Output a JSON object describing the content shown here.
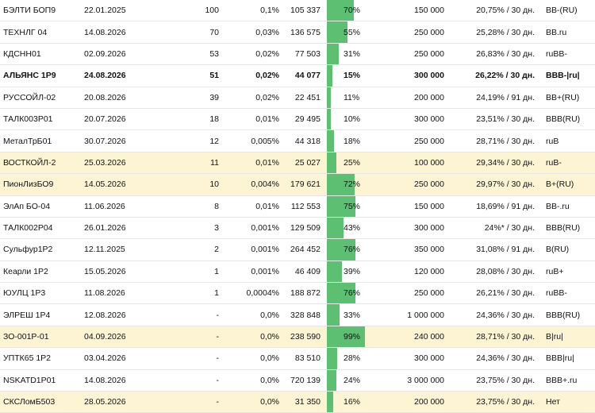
{
  "bar_color": "#5cbf72",
  "highlight_color": "#fdf4d4",
  "rows": [
    {
      "name": "БЭЛТИ БОП9",
      "date": "22.01.2025",
      "count": "100",
      "pct": "0,1%",
      "volume": "105 337",
      "bar_label": "70%",
      "bar_pct": 70,
      "total": "150 000",
      "yield": "20,75% / 30 дн.",
      "rating": "BB-(RU)",
      "hl": false,
      "bold": false
    },
    {
      "name": "ТЕХНЛГ 04",
      "date": "14.08.2026",
      "count": "70",
      "pct": "0,03%",
      "volume": "136 575",
      "bar_label": "55%",
      "bar_pct": 55,
      "total": "250 000",
      "yield": "25,28% / 30 дн.",
      "rating": "BB.ru",
      "hl": false,
      "bold": false
    },
    {
      "name": "КДСНН01",
      "date": "02.09.2026",
      "count": "53",
      "pct": "0,02%",
      "volume": "77 503",
      "bar_label": "31%",
      "bar_pct": 31,
      "total": "250 000",
      "yield": "26,83% / 30 дн.",
      "rating": "ruBB-",
      "hl": false,
      "bold": false
    },
    {
      "name": "АЛЬЯНС 1Р9",
      "date": "24.08.2026",
      "count": "51",
      "pct": "0,02%",
      "volume": "44 077",
      "bar_label": "15%",
      "bar_pct": 15,
      "total": "300 000",
      "yield": "26,22% / 30 дн.",
      "rating": "BBB-|ru|",
      "hl": false,
      "bold": true
    },
    {
      "name": "РУССОЙЛ-02",
      "date": "20.08.2026",
      "count": "39",
      "pct": "0,02%",
      "volume": "22 451",
      "bar_label": "11%",
      "bar_pct": 11,
      "total": "200 000",
      "yield": "24,19% / 91 дн.",
      "rating": "BB+(RU)",
      "hl": false,
      "bold": false
    },
    {
      "name": "ТАЛК003Р01",
      "date": "20.07.2026",
      "count": "18",
      "pct": "0,01%",
      "volume": "29 495",
      "bar_label": "10%",
      "bar_pct": 10,
      "total": "300 000",
      "yield": "23,51% / 30 дн.",
      "rating": "BBB(RU)",
      "hl": false,
      "bold": false
    },
    {
      "name": "МеталТрБ01",
      "date": "30.07.2026",
      "count": "12",
      "pct": "0,005%",
      "volume": "44 318",
      "bar_label": "18%",
      "bar_pct": 18,
      "total": "250 000",
      "yield": "28,71% / 30 дн.",
      "rating": "ruB",
      "hl": false,
      "bold": false
    },
    {
      "name": "ВОСТКОЙЛ-2",
      "date": "25.03.2026",
      "count": "11",
      "pct": "0,01%",
      "volume": "25 027",
      "bar_label": "25%",
      "bar_pct": 25,
      "total": "100 000",
      "yield": "29,34% / 30 дн.",
      "rating": "ruB-",
      "hl": true,
      "bold": false
    },
    {
      "name": "ПионЛизБО9",
      "date": "14.05.2026",
      "count": "10",
      "pct": "0,004%",
      "volume": "179 621",
      "bar_label": "72%",
      "bar_pct": 72,
      "total": "250 000",
      "yield": "29,97% / 30 дн.",
      "rating": "B+(RU)",
      "hl": true,
      "bold": false
    },
    {
      "name": "ЭлАп БО-04",
      "date": "11.06.2026",
      "count": "8",
      "pct": "0,01%",
      "volume": "112 553",
      "bar_label": "75%",
      "bar_pct": 75,
      "total": "150 000",
      "yield": "18,69% / 91 дн.",
      "rating": "BB-.ru",
      "hl": false,
      "bold": false
    },
    {
      "name": "ТАЛК002Р04",
      "date": "26.01.2026",
      "count": "3",
      "pct": "0,001%",
      "volume": "129 509",
      "bar_label": "43%",
      "bar_pct": 43,
      "total": "300 000",
      "yield": "24%* / 30 дн.",
      "rating": "BBB(RU)",
      "hl": false,
      "bold": false
    },
    {
      "name": "Сульфур1Р2",
      "date": "12.11.2025",
      "count": "2",
      "pct": "0,001%",
      "volume": "264 452",
      "bar_label": "76%",
      "bar_pct": 76,
      "total": "350 000",
      "yield": "31,08% / 91 дн.",
      "rating": "B(RU)",
      "hl": false,
      "bold": false
    },
    {
      "name": "Кеарли 1Р2",
      "date": "15.05.2026",
      "count": "1",
      "pct": "0,001%",
      "volume": "46 409",
      "bar_label": "39%",
      "bar_pct": 39,
      "total": "120 000",
      "yield": "28,08% / 30 дн.",
      "rating": "ruB+",
      "hl": false,
      "bold": false
    },
    {
      "name": "ЮУЛЦ 1Р3",
      "date": "11.08.2026",
      "count": "1",
      "pct": "0,0004%",
      "volume": "188 872",
      "bar_label": "76%",
      "bar_pct": 76,
      "total": "250 000",
      "yield": "26,21% / 30 дн.",
      "rating": "ruBB-",
      "hl": false,
      "bold": false
    },
    {
      "name": "ЭЛРЕШ 1Р4",
      "date": "12.08.2026",
      "count": "-",
      "pct": "0,0%",
      "volume": "328 848",
      "bar_label": "33%",
      "bar_pct": 33,
      "total": "1 000 000",
      "yield": "24,36% / 30 дн.",
      "rating": "BBB(RU)",
      "hl": false,
      "bold": false
    },
    {
      "name": "ЗО-001Р-01",
      "date": "04.09.2026",
      "count": "-",
      "pct": "0,0%",
      "volume": "238 590",
      "bar_label": "99%",
      "bar_pct": 99,
      "total": "240 000",
      "yield": "28,71% / 30 дн.",
      "rating": "B|ru|",
      "hl": true,
      "bold": false
    },
    {
      "name": "УПТК65 1Р2",
      "date": "03.04.2026",
      "count": "-",
      "pct": "0,0%",
      "volume": "83 510",
      "bar_label": "28%",
      "bar_pct": 28,
      "total": "300 000",
      "yield": "24,36% / 30 дн.",
      "rating": "BBB|ru|",
      "hl": false,
      "bold": false
    },
    {
      "name": "NSKATD1P01",
      "date": "14.08.2026",
      "count": "-",
      "pct": "0,0%",
      "volume": "720 139",
      "bar_label": "24%",
      "bar_pct": 24,
      "total": "3 000 000",
      "yield": "23,75% / 30 дн.",
      "rating": "BBB+.ru",
      "hl": false,
      "bold": false
    },
    {
      "name": "СКСЛомБ503",
      "date": "28.05.2026",
      "count": "-",
      "pct": "0,0%",
      "volume": "31 350",
      "bar_label": "16%",
      "bar_pct": 16,
      "total": "200 000",
      "yield": "23,75% / 30 дн.",
      "rating": "Нет",
      "hl": true,
      "bold": false
    }
  ]
}
